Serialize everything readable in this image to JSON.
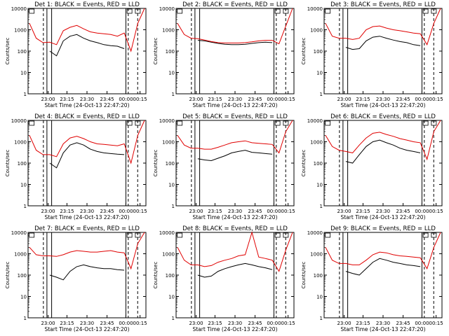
{
  "figure": {
    "x_ticks": [
      "23:00",
      "23:15",
      "23:30",
      "23:45",
      "00:00",
      "00:15"
    ],
    "y_ticks": [
      "1",
      "10",
      "100",
      "1000",
      "10000"
    ],
    "xlabel": "Start Time (24-Oct-13 22:47:20)",
    "ylabel": "Counts/sec",
    "colors": {
      "events": "#000000",
      "lld": "#e00000",
      "axes": "#000000"
    }
  },
  "chart_data": [
    {
      "type": "line",
      "title": "Det  1: BLACK = Events, RED = LLD",
      "xlabel": "Start Time (24-Oct-13 22:47:20)",
      "ylabel": "Counts/sec",
      "y_scale": "log",
      "ylim": [
        1,
        10000
      ],
      "x_ticks": [
        "23:00",
        "23:15",
        "23:30",
        "23:45",
        "00:00",
        "00:15"
      ],
      "x": [
        "22:47",
        "22:55",
        "23:00",
        "23:05",
        "23:10",
        "23:15",
        "23:20",
        "23:25",
        "23:30",
        "23:35",
        "23:40",
        "23:45",
        "23:50",
        "23:55",
        "00:00",
        "00:05",
        "00:10",
        "00:15"
      ],
      "series": [
        {
          "name": "Events",
          "color": "#000000",
          "values": [
            null,
            null,
            null,
            100,
            60,
            300,
            500,
            600,
            400,
            300,
            250,
            200,
            180,
            170,
            130,
            null,
            null,
            null
          ]
        },
        {
          "name": "LLD",
          "color": "#e00000",
          "values": [
            2000,
            400,
            250,
            260,
            200,
            900,
            1300,
            1600,
            1100,
            800,
            700,
            650,
            600,
            500,
            700,
            100,
            2000,
            10000
          ]
        }
      ]
    },
    {
      "type": "line",
      "title": "Det  2: BLACK = Events, RED = LLD",
      "xlabel": "Start Time (24-Oct-13 22:47:20)",
      "ylabel": "Counts/sec",
      "y_scale": "log",
      "ylim": [
        1,
        10000
      ],
      "x_ticks": [
        "23:00",
        "23:15",
        "23:30",
        "23:45",
        "00:00",
        "00:15"
      ],
      "x": [
        "22:47",
        "22:55",
        "23:00",
        "23:05",
        "23:10",
        "23:15",
        "23:20",
        "23:25",
        "23:30",
        "23:35",
        "23:40",
        "23:45",
        "23:50",
        "23:55",
        "00:00",
        "00:05",
        "00:10",
        "00:15"
      ],
      "series": [
        {
          "name": "Events",
          "color": "#000000",
          "values": [
            null,
            null,
            null,
            320,
            300,
            260,
            230,
            210,
            200,
            200,
            210,
            230,
            250,
            260,
            250,
            null,
            null,
            null
          ]
        },
        {
          "name": "LLD",
          "color": "#e00000",
          "values": [
            2000,
            600,
            400,
            380,
            330,
            280,
            250,
            240,
            240,
            240,
            250,
            270,
            300,
            320,
            320,
            220,
            1500,
            10000
          ]
        }
      ]
    },
    {
      "type": "line",
      "title": "Det  3: BLACK = Events, RED = LLD",
      "xlabel": "Start Time (24-Oct-13 22:47:20)",
      "ylabel": "Counts/sec",
      "y_scale": "log",
      "ylim": [
        1,
        10000
      ],
      "x_ticks": [
        "23:00",
        "23:15",
        "23:30",
        "23:45",
        "00:00",
        "00:15"
      ],
      "x": [
        "22:47",
        "22:55",
        "23:00",
        "23:05",
        "23:10",
        "23:15",
        "23:20",
        "23:25",
        "23:30",
        "23:35",
        "23:40",
        "23:45",
        "23:50",
        "23:55",
        "00:00",
        "00:05",
        "00:10",
        "00:15"
      ],
      "series": [
        {
          "name": "Events",
          "color": "#000000",
          "values": [
            null,
            null,
            null,
            150,
            120,
            130,
            300,
            450,
            500,
            400,
            330,
            280,
            250,
            200,
            180,
            null,
            null,
            null
          ]
        },
        {
          "name": "LLD",
          "color": "#e00000",
          "values": [
            2000,
            500,
            400,
            400,
            350,
            400,
            1000,
            1400,
            1500,
            1200,
            1000,
            900,
            800,
            700,
            650,
            200,
            2000,
            10000
          ]
        }
      ]
    },
    {
      "type": "line",
      "title": "Det  4: BLACK = Events, RED = LLD",
      "xlabel": "Start Time (24-Oct-13 22:47:20)",
      "ylabel": "Counts/sec",
      "y_scale": "log",
      "ylim": [
        1,
        10000
      ],
      "x_ticks": [
        "23:00",
        "23:15",
        "23:30",
        "23:45",
        "00:00",
        "00:15"
      ],
      "x": [
        "22:47",
        "22:55",
        "23:00",
        "23:05",
        "23:10",
        "23:15",
        "23:20",
        "23:25",
        "23:30",
        "23:35",
        "23:40",
        "23:45",
        "23:50",
        "23:55",
        "00:00",
        "00:05",
        "00:10",
        "00:15"
      ],
      "series": [
        {
          "name": "Events",
          "color": "#000000",
          "values": [
            null,
            null,
            null,
            100,
            60,
            300,
            700,
            900,
            700,
            450,
            350,
            300,
            280,
            260,
            250,
            null,
            null,
            null
          ]
        },
        {
          "name": "LLD",
          "color": "#e00000",
          "values": [
            2000,
            400,
            250,
            250,
            200,
            800,
            1500,
            1800,
            1400,
            1000,
            800,
            750,
            700,
            650,
            800,
            100,
            2000,
            10000
          ]
        }
      ]
    },
    {
      "type": "line",
      "title": "Det  5: BLACK = Events, RED = LLD",
      "xlabel": "Start Time (24-Oct-13 22:47:20)",
      "ylabel": "Counts/sec",
      "y_scale": "log",
      "ylim": [
        1,
        10000
      ],
      "x_ticks": [
        "23:00",
        "23:15",
        "23:30",
        "23:45",
        "00:00",
        "00:15"
      ],
      "x": [
        "22:47",
        "22:55",
        "23:00",
        "23:05",
        "23:10",
        "23:15",
        "23:20",
        "23:25",
        "23:30",
        "23:35",
        "23:40",
        "23:45",
        "23:50",
        "23:55",
        "00:00",
        "00:05",
        "00:10",
        "00:15"
      ],
      "series": [
        {
          "name": "Events",
          "color": "#000000",
          "values": [
            null,
            null,
            null,
            160,
            140,
            130,
            170,
            220,
            300,
            350,
            400,
            320,
            300,
            280,
            260,
            null,
            null,
            null
          ]
        },
        {
          "name": "LLD",
          "color": "#e00000",
          "values": [
            2000,
            700,
            500,
            500,
            450,
            450,
            550,
            700,
            900,
            1000,
            1100,
            900,
            850,
            800,
            750,
            300,
            3000,
            10000
          ]
        }
      ]
    },
    {
      "type": "line",
      "title": "Det  6: BLACK = Events, RED = LLD",
      "xlabel": "Start Time (24-Oct-13 22:47:20)",
      "ylabel": "Counts/sec",
      "y_scale": "log",
      "ylim": [
        1,
        10000
      ],
      "x_ticks": [
        "23:00",
        "23:15",
        "23:30",
        "23:45",
        "00:00",
        "00:15"
      ],
      "x": [
        "22:47",
        "22:55",
        "23:00",
        "23:05",
        "23:10",
        "23:15",
        "23:20",
        "23:25",
        "23:30",
        "23:35",
        "23:40",
        "23:45",
        "23:50",
        "23:55",
        "00:00",
        "00:05",
        "00:10",
        "00:15"
      ],
      "series": [
        {
          "name": "Events",
          "color": "#000000",
          "values": [
            null,
            null,
            null,
            120,
            100,
            250,
            600,
            1000,
            1200,
            900,
            700,
            500,
            400,
            350,
            300,
            null,
            null,
            null
          ]
        },
        {
          "name": "LLD",
          "color": "#e00000",
          "values": [
            2000,
            600,
            400,
            350,
            300,
            700,
            1500,
            2500,
            2800,
            2200,
            1800,
            1400,
            1200,
            1000,
            900,
            150,
            3000,
            10000
          ]
        }
      ]
    },
    {
      "type": "line",
      "title": "Det  7: BLACK = Events, RED = LLD",
      "xlabel": "Start Time (24-Oct-13 22:47:20)",
      "ylabel": "Counts/sec",
      "y_scale": "log",
      "ylim": [
        1,
        10000
      ],
      "x_ticks": [
        "23:00",
        "23:15",
        "23:30",
        "23:45",
        "00:00",
        "00:15"
      ],
      "x": [
        "22:47",
        "22:55",
        "23:00",
        "23:05",
        "23:10",
        "23:15",
        "23:20",
        "23:25",
        "23:30",
        "23:35",
        "23:40",
        "23:45",
        "23:50",
        "23:55",
        "00:00",
        "00:05",
        "00:10",
        "00:15"
      ],
      "series": [
        {
          "name": "Events",
          "color": "#000000",
          "values": [
            null,
            null,
            null,
            100,
            80,
            60,
            150,
            250,
            300,
            250,
            220,
            200,
            200,
            180,
            170,
            null,
            null,
            null
          ]
        },
        {
          "name": "LLD",
          "color": "#e00000",
          "values": [
            2000,
            900,
            800,
            800,
            750,
            900,
            1200,
            1400,
            1300,
            1200,
            1200,
            1300,
            1400,
            1200,
            1100,
            200,
            3000,
            10000
          ]
        }
      ]
    },
    {
      "type": "line",
      "title": "Det  8: BLACK = Events, RED = LLD",
      "xlabel": "Start Time (24-Oct-13 22:47:20)",
      "ylabel": "Counts/sec",
      "y_scale": "log",
      "ylim": [
        1,
        10000
      ],
      "x_ticks": [
        "23:00",
        "23:15",
        "23:30",
        "23:45",
        "00:00",
        "00:15"
      ],
      "x": [
        "22:47",
        "22:55",
        "23:00",
        "23:05",
        "23:10",
        "23:15",
        "23:20",
        "23:25",
        "23:30",
        "23:35",
        "23:40",
        "23:45",
        "23:50",
        "23:55",
        "00:00",
        "00:05",
        "00:10",
        "00:15"
      ],
      "series": [
        {
          "name": "Events",
          "color": "#000000",
          "values": [
            null,
            null,
            null,
            100,
            80,
            90,
            150,
            200,
            250,
            300,
            350,
            300,
            250,
            220,
            180,
            null,
            null,
            null
          ]
        },
        {
          "name": "LLD",
          "color": "#e00000",
          "values": [
            2000,
            500,
            300,
            300,
            250,
            280,
            400,
            500,
            600,
            800,
            900,
            10000,
            700,
            600,
            500,
            150,
            1500,
            10000
          ]
        }
      ]
    },
    {
      "type": "line",
      "title": "Det  9: BLACK = Events, RED = LLD",
      "xlabel": "Start Time (24-Oct-13 22:47:20)",
      "ylabel": "Counts/sec",
      "y_scale": "log",
      "ylim": [
        1,
        10000
      ],
      "x_ticks": [
        "23:00",
        "23:15",
        "23:30",
        "23:45",
        "00:00",
        "00:15"
      ],
      "x": [
        "22:47",
        "22:55",
        "23:00",
        "23:05",
        "23:10",
        "23:15",
        "23:20",
        "23:25",
        "23:30",
        "23:35",
        "23:40",
        "23:45",
        "23:50",
        "23:55",
        "00:00",
        "00:05",
        "00:10",
        "00:15"
      ],
      "series": [
        {
          "name": "Events",
          "color": "#000000",
          "values": [
            null,
            null,
            null,
            150,
            120,
            100,
            200,
            400,
            600,
            500,
            400,
            350,
            300,
            280,
            250,
            null,
            null,
            null
          ]
        },
        {
          "name": "LLD",
          "color": "#e00000",
          "values": [
            2000,
            500,
            350,
            350,
            300,
            300,
            500,
            900,
            1200,
            1100,
            900,
            800,
            750,
            700,
            650,
            200,
            2000,
            10000
          ]
        }
      ]
    }
  ]
}
